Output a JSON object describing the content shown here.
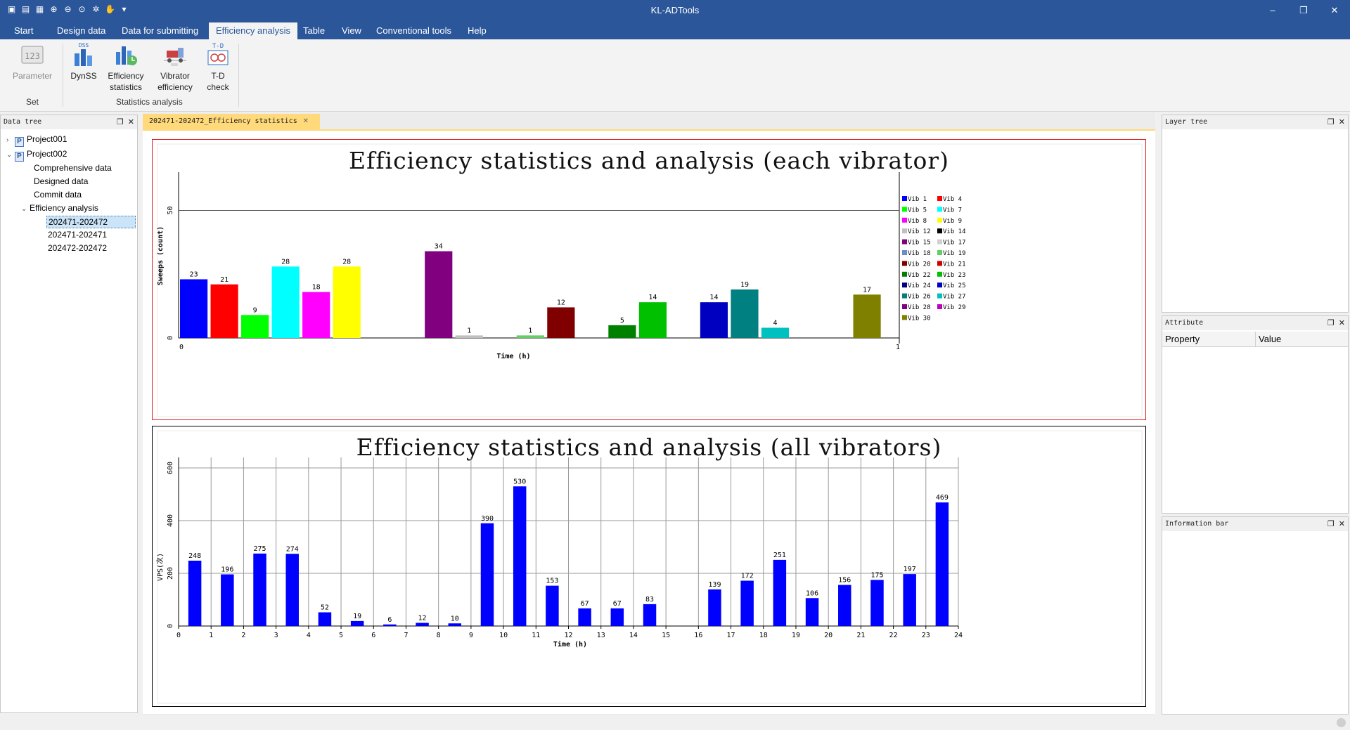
{
  "app": {
    "title": "KL-ADTools"
  },
  "menu": {
    "tabs": [
      "Start",
      "Design data",
      "Data for submitting",
      "Efficiency analysis",
      "Table",
      "View",
      "Conventional tools",
      "Help"
    ],
    "active": "Efficiency analysis"
  },
  "ribbon": {
    "parameter": "Parameter",
    "dynss": "DynSS",
    "dss_badge": "DSS",
    "eff_stats_1": "Efficiency",
    "eff_stats_2": "statistics",
    "vib_eff_1": "Vibrator",
    "vib_eff_2": "efficiency",
    "td_1": "T-D",
    "td_2": "check",
    "td_badge": "T-D",
    "group_set": "Set",
    "group_stats": "Statistics analysis"
  },
  "data_tree": {
    "title": "Data tree",
    "items": {
      "p1": "Project001",
      "p2": "Project002",
      "comp": "Comprehensive data",
      "designed": "Designed data",
      "commit": "Commit data",
      "eff": "Efficiency analysis",
      "r1": "202471-202472",
      "r2": "202471-202471",
      "r3": "202472-202472"
    }
  },
  "document_tab": {
    "label": "202471-202472_Efficiency statistics"
  },
  "panels": {
    "layer_tree": "Layer tree",
    "attribute": "Attribute",
    "attr_col_property": "Property",
    "attr_col_value": "Value",
    "info_bar": "Information bar"
  },
  "colors": {
    "accent": "#2b579a",
    "active_tab_bg": "#ffd97a",
    "chart_border_selected": "#e02020",
    "bar_blue": "#0000ff"
  },
  "chart_data": [
    {
      "type": "bar",
      "title": "Efficiency statistics and analysis (each vibrator)",
      "xlabel": "Time (h)",
      "ylabel": "Sweeps (count)",
      "ylim": [
        0,
        65
      ],
      "yticks": [
        0,
        50
      ],
      "xticks": [
        "0",
        "1"
      ],
      "grid": "horizontal at 50",
      "legend_position": "right",
      "legend": [
        {
          "name": "Vib 1",
          "color": "#0000ff"
        },
        {
          "name": "Vib 4",
          "color": "#ff0000"
        },
        {
          "name": "Vib 5",
          "color": "#00ff00"
        },
        {
          "name": "Vib 7",
          "color": "#00ffff"
        },
        {
          "name": "Vib 8",
          "color": "#ff00ff"
        },
        {
          "name": "Vib 9",
          "color": "#ffff00"
        },
        {
          "name": "Vib 12",
          "color": "#c0c0c0"
        },
        {
          "name": "Vib 14",
          "color": "#000000"
        },
        {
          "name": "Vib 15",
          "color": "#800080"
        },
        {
          "name": "Vib 17",
          "color": "#d0d0d0"
        },
        {
          "name": "Vib 18",
          "color": "#6a8fc8"
        },
        {
          "name": "Vib 19",
          "color": "#66cc66"
        },
        {
          "name": "Vib 20",
          "color": "#800000"
        },
        {
          "name": "Vib 21",
          "color": "#cc0000"
        },
        {
          "name": "Vib 22",
          "color": "#008000"
        },
        {
          "name": "Vib 23",
          "color": "#00c000"
        },
        {
          "name": "Vib 24",
          "color": "#000080"
        },
        {
          "name": "Vib 25",
          "color": "#0000c0"
        },
        {
          "name": "Vib 26",
          "color": "#008080"
        },
        {
          "name": "Vib 27",
          "color": "#00c0c0"
        },
        {
          "name": "Vib 28",
          "color": "#800080"
        },
        {
          "name": "Vib 29",
          "color": "#c000c0"
        },
        {
          "name": "Vib 30",
          "color": "#808000"
        }
      ],
      "bars": [
        {
          "vib": "Vib 1",
          "value": 23,
          "color": "#0000ff"
        },
        {
          "vib": "Vib 4",
          "value": 21,
          "color": "#ff0000"
        },
        {
          "vib": "Vib 5",
          "value": 9,
          "color": "#00ff00"
        },
        {
          "vib": "Vib 7",
          "value": 28,
          "color": "#00ffff"
        },
        {
          "vib": "Vib 8",
          "value": 18,
          "color": "#ff00ff"
        },
        {
          "vib": "Vib 9",
          "value": 28,
          "color": "#ffff00"
        },
        {
          "vib": "Vib 12",
          "value": 0,
          "color": "#c0c0c0"
        },
        {
          "vib": "Vib 14",
          "value": 0,
          "color": "#000000"
        },
        {
          "vib": "Vib 15",
          "value": 34,
          "color": "#800080"
        },
        {
          "vib": "Vib 17",
          "value": 1,
          "color": "#c0c0c0"
        },
        {
          "vib": "Vib 18",
          "value": 0,
          "color": "#6a8fc8"
        },
        {
          "vib": "Vib 19",
          "value": 1,
          "color": "#66cc66"
        },
        {
          "vib": "Vib 20",
          "value": 12,
          "color": "#800000"
        },
        {
          "vib": "Vib 21",
          "value": 0,
          "color": "#cc0000"
        },
        {
          "vib": "Vib 22",
          "value": 5,
          "color": "#008000"
        },
        {
          "vib": "Vib 23",
          "value": 14,
          "color": "#00c000"
        },
        {
          "vib": "Vib 24",
          "value": 0,
          "color": "#000080"
        },
        {
          "vib": "Vib 25",
          "value": 14,
          "color": "#0000c0"
        },
        {
          "vib": "Vib 26",
          "value": 19,
          "color": "#008080"
        },
        {
          "vib": "Vib 27",
          "value": 4,
          "color": "#00c0c0"
        },
        {
          "vib": "Vib 28",
          "value": 0,
          "color": "#800080"
        },
        {
          "vib": "Vib 29",
          "value": 0,
          "color": "#c000c0"
        },
        {
          "vib": "Vib 30",
          "value": 17,
          "color": "#808000"
        }
      ]
    },
    {
      "type": "bar",
      "title": "Efficiency statistics and analysis (all vibrators)",
      "xlabel": "Time (h)",
      "ylabel": "VPS(次)",
      "ylim": [
        0,
        640
      ],
      "yticks": [
        0,
        200,
        400,
        600
      ],
      "xticks": [
        "0",
        "1",
        "2",
        "3",
        "4",
        "5",
        "6",
        "7",
        "8",
        "9",
        "10",
        "11",
        "12",
        "13",
        "14",
        "15",
        "16",
        "17",
        "18",
        "19",
        "20",
        "21",
        "22",
        "23",
        "24"
      ],
      "grid": "on",
      "series": [
        {
          "name": "",
          "color": "#0000ff"
        }
      ],
      "bars": [
        {
          "hour": 0,
          "value": 248
        },
        {
          "hour": 1,
          "value": 196
        },
        {
          "hour": 2,
          "value": 275
        },
        {
          "hour": 3,
          "value": 274
        },
        {
          "hour": 4,
          "value": 52
        },
        {
          "hour": 5,
          "value": 19
        },
        {
          "hour": 6,
          "value": 6
        },
        {
          "hour": 7,
          "value": 12
        },
        {
          "hour": 8,
          "value": 10
        },
        {
          "hour": 9,
          "value": 390
        },
        {
          "hour": 10,
          "value": 530
        },
        {
          "hour": 11,
          "value": 153
        },
        {
          "hour": 12,
          "value": 67
        },
        {
          "hour": 13,
          "value": 67
        },
        {
          "hour": 14,
          "value": 83
        },
        {
          "hour": 16,
          "value": 139
        },
        {
          "hour": 17,
          "value": 172
        },
        {
          "hour": 18,
          "value": 251
        },
        {
          "hour": 19,
          "value": 106
        },
        {
          "hour": 20,
          "value": 156
        },
        {
          "hour": 21,
          "value": 175
        },
        {
          "hour": 22,
          "value": 197
        },
        {
          "hour": 23,
          "value": 469
        }
      ]
    }
  ]
}
